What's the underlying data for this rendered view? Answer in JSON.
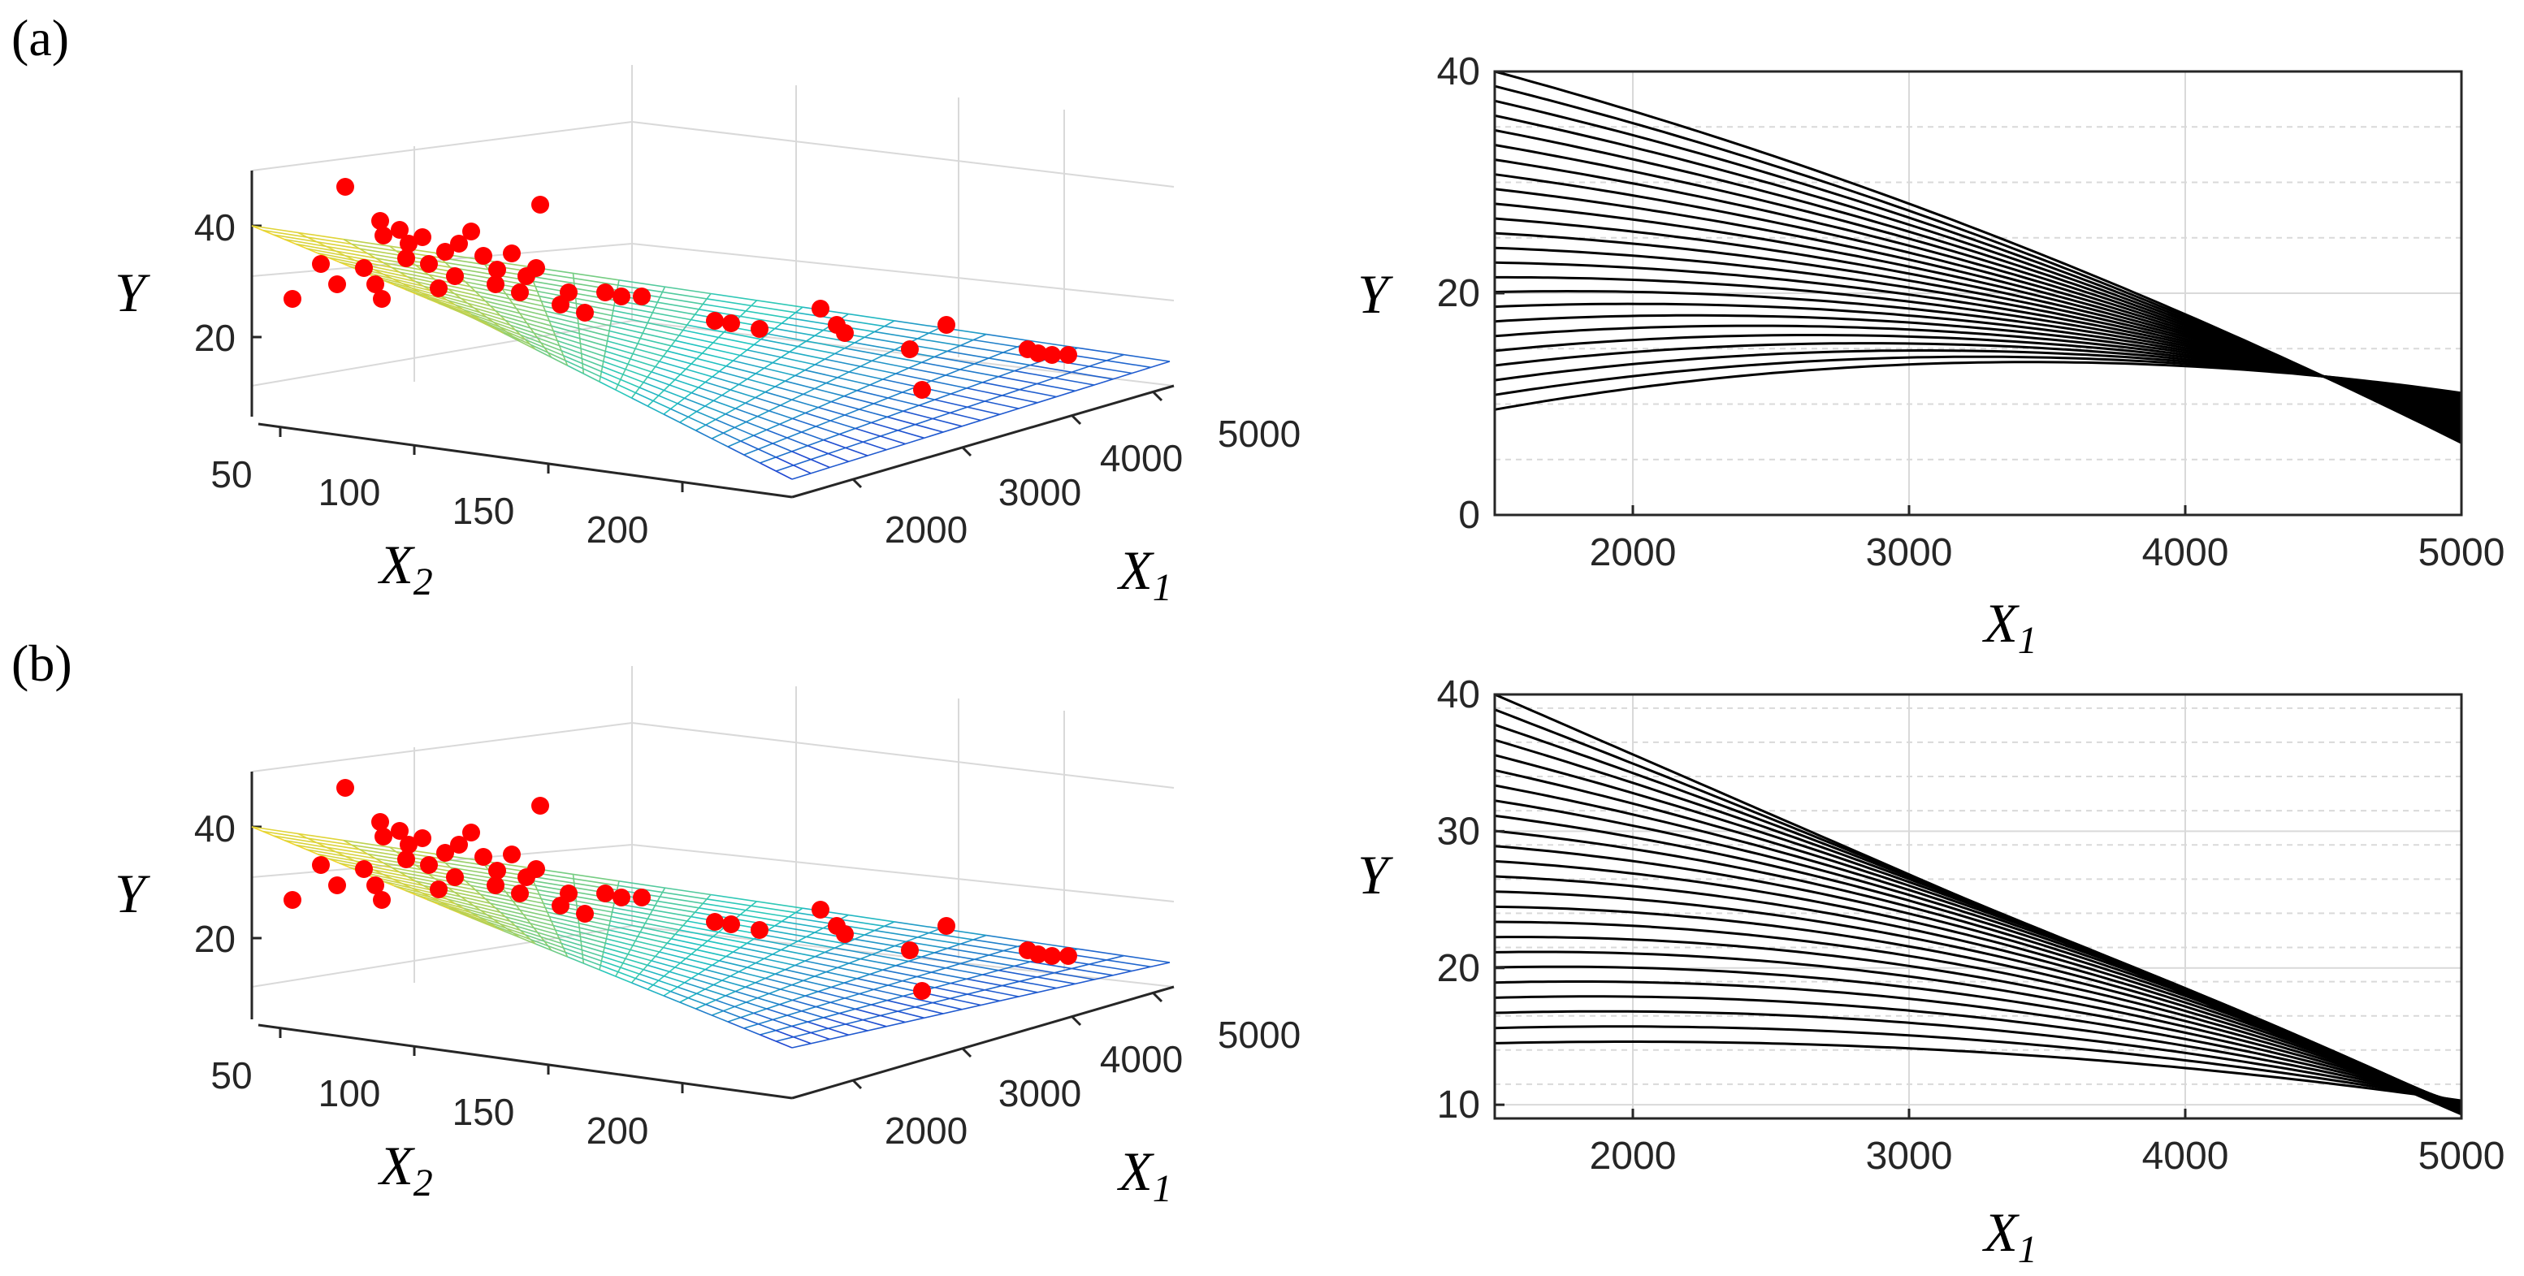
{
  "figure": {
    "panel_labels": [
      "(a)",
      "(b)"
    ]
  },
  "colors": {
    "points": "#ff0000",
    "curves": "#000000",
    "grid": "#d9d9d9",
    "axis": "#262626",
    "surface_low": "#1f2bd6",
    "surface_mid": "#22c7c0",
    "surface_high": "#f2d52a"
  },
  "chart_data": [
    {
      "panel": "(a)",
      "type": "scatter",
      "subtype": "3d-scatter-with-fitted-surface",
      "xlabel": "X",
      "xlabel_sub": "1",
      "ylabel": "X",
      "ylabel_sub": "2",
      "zlabel": "Y",
      "x_ticks": [
        "2000",
        "3000",
        "4000",
        "5000"
      ],
      "y_ticks": [
        "50",
        "100",
        "150",
        "200"
      ],
      "z_ticks": [
        "20",
        "40"
      ],
      "xlim": [
        1500,
        5000
      ],
      "ylim": [
        50,
        230
      ],
      "zlim": [
        10,
        50
      ]
    },
    {
      "panel": "(a)",
      "type": "line",
      "xlabel": "X",
      "xlabel_sub": "1",
      "ylabel": "Y",
      "x_ticks": [
        "2000",
        "3000",
        "4000",
        "5000"
      ],
      "y_ticks": [
        "0",
        "20",
        "40"
      ],
      "xlim": [
        1500,
        5000
      ],
      "ylim": [
        0,
        40
      ],
      "curve_count": 24,
      "start_range": [
        9.5,
        40
      ],
      "cross_x": 4500,
      "cross_y": 12.5,
      "end_range": [
        6.5,
        11
      ]
    },
    {
      "panel": "(b)",
      "type": "scatter",
      "subtype": "3d-scatter-with-fitted-surface",
      "xlabel": "X",
      "xlabel_sub": "1",
      "ylabel": "X",
      "ylabel_sub": "2",
      "zlabel": "Y",
      "x_ticks": [
        "2000",
        "3000",
        "4000",
        "5000"
      ],
      "y_ticks": [
        "50",
        "100",
        "150",
        "200"
      ],
      "z_ticks": [
        "20",
        "40"
      ],
      "xlim": [
        1500,
        5000
      ],
      "ylim": [
        50,
        230
      ],
      "zlim": [
        10,
        50
      ]
    },
    {
      "panel": "(b)",
      "type": "line",
      "xlabel": "X",
      "xlabel_sub": "1",
      "ylabel": "Y",
      "x_ticks": [
        "2000",
        "3000",
        "4000",
        "5000"
      ],
      "y_ticks": [
        "10",
        "20",
        "30",
        "40"
      ],
      "xlim": [
        1500,
        5000
      ],
      "ylim": [
        9,
        40
      ],
      "curve_count": 24,
      "start_range": [
        14.5,
        40
      ],
      "end_range": [
        9.3,
        10.3
      ]
    }
  ]
}
